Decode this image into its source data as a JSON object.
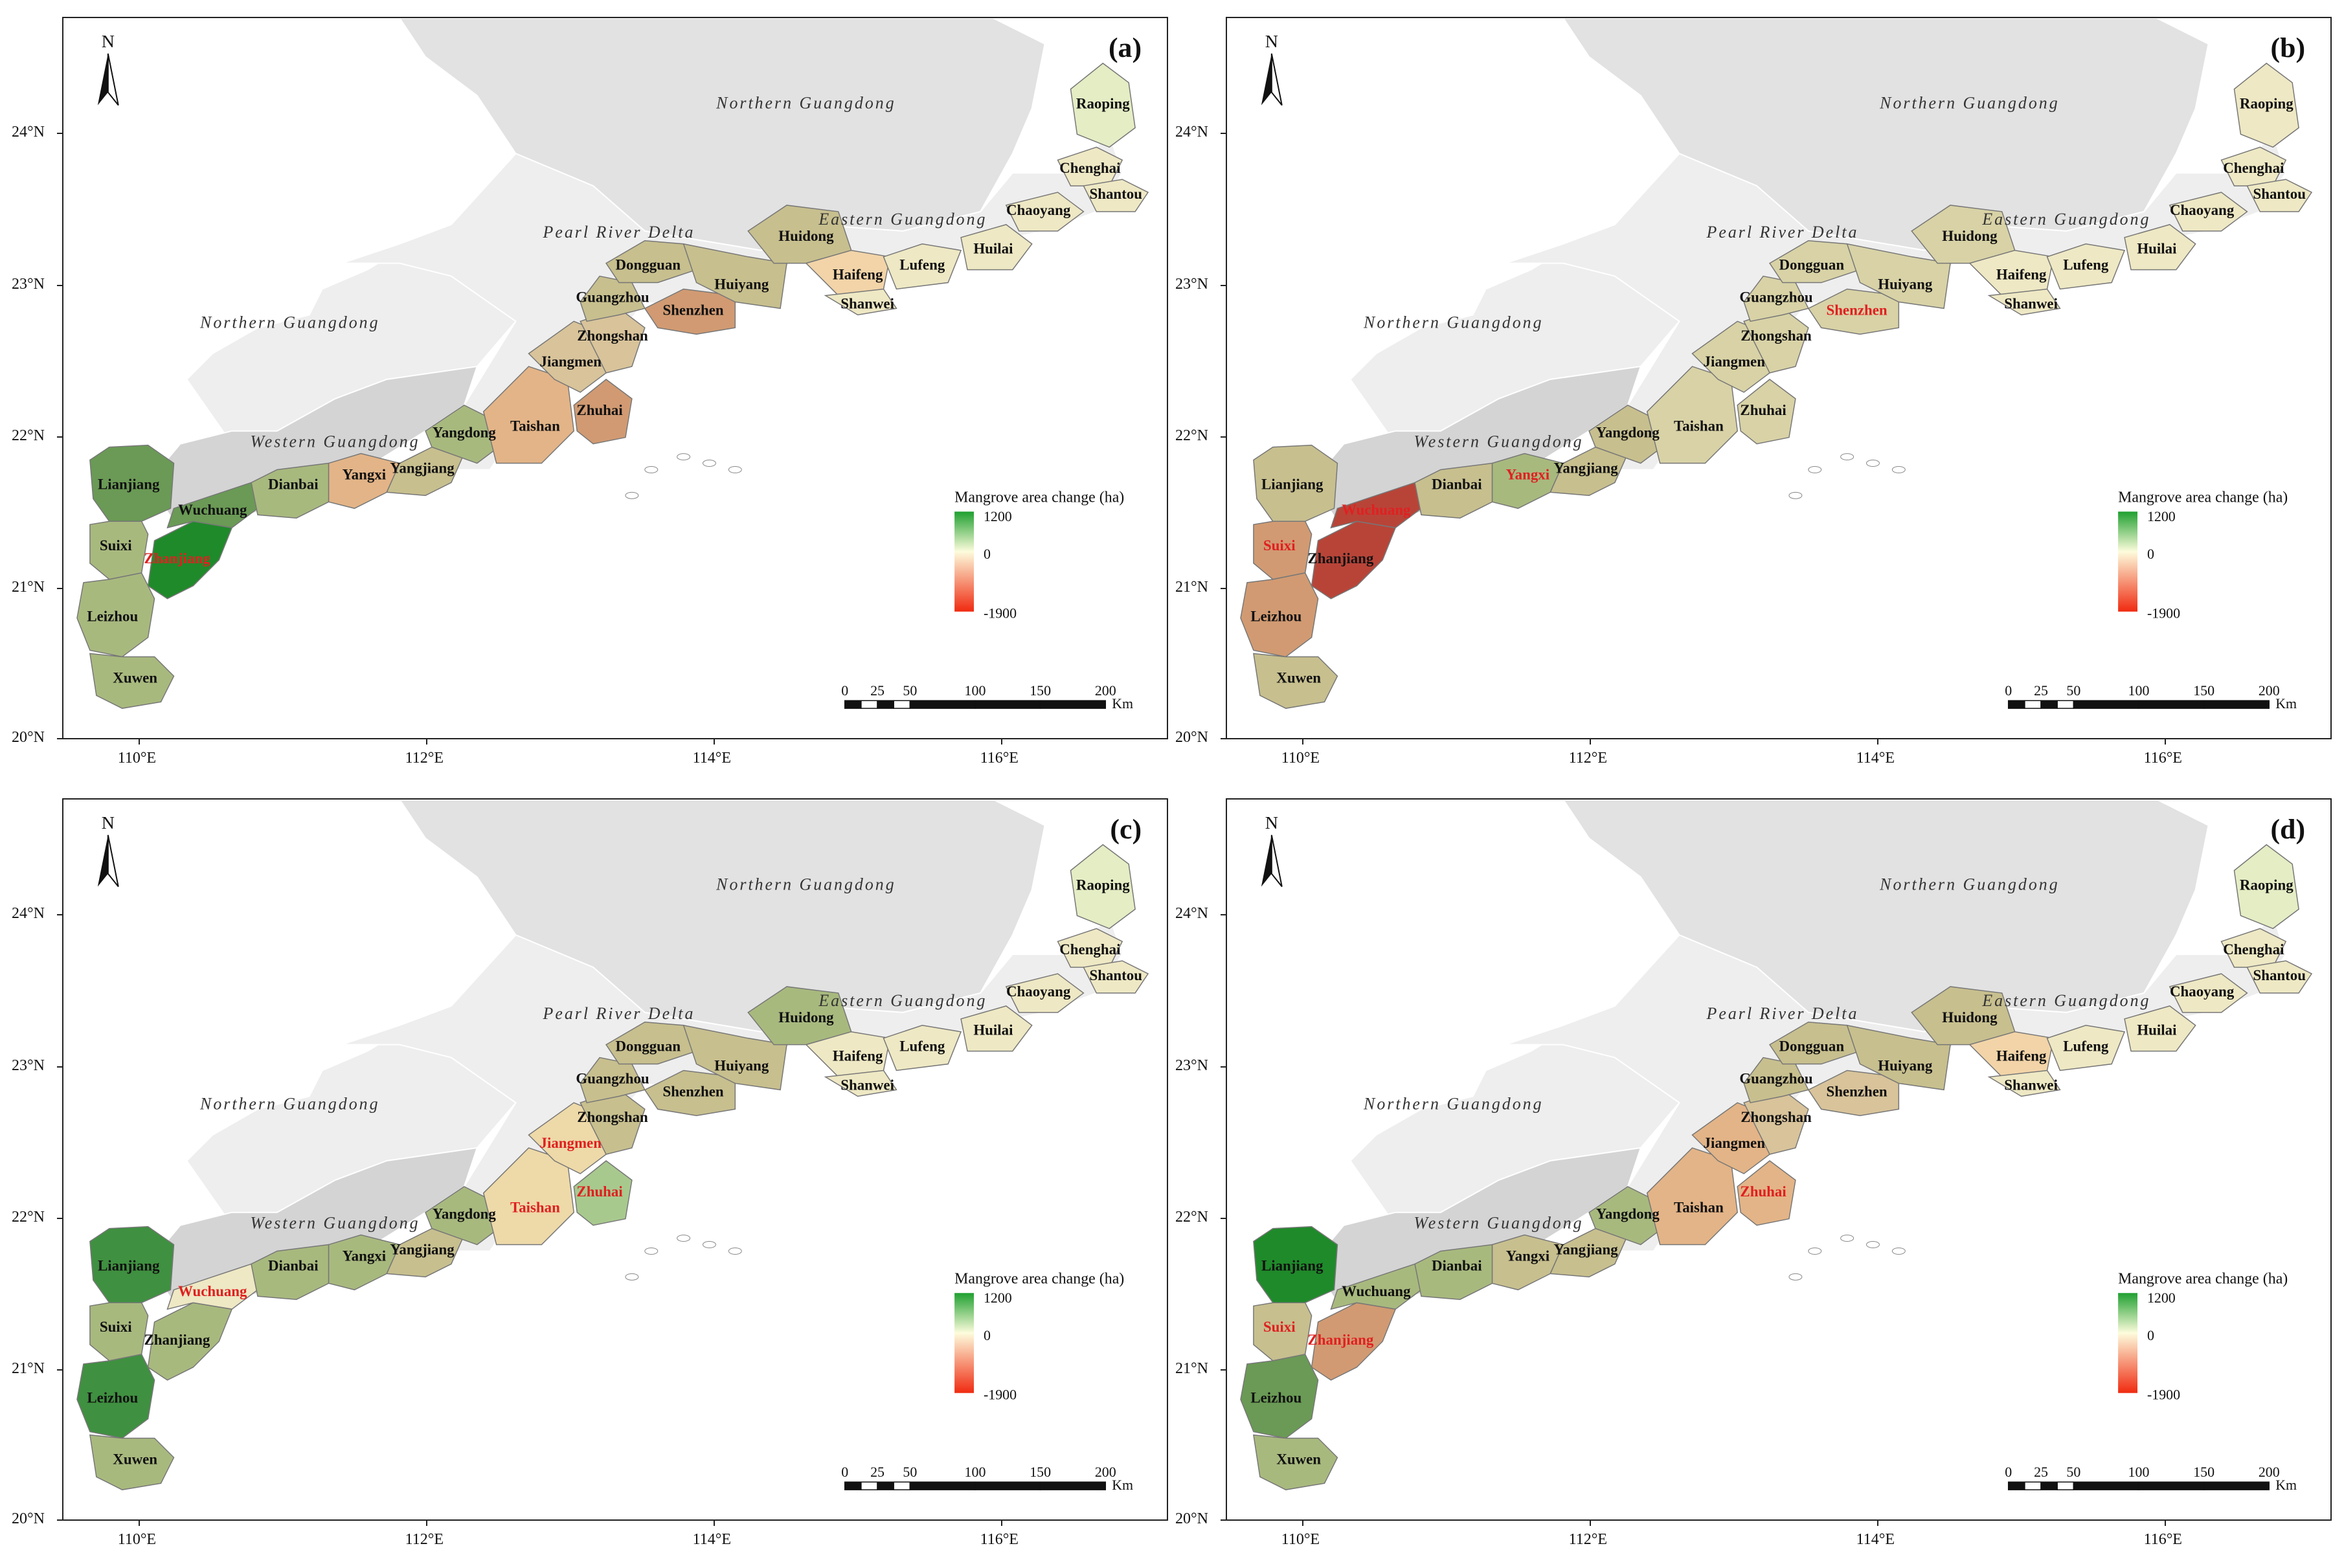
{
  "figure": {
    "legend_title": "Mangrove area change (ha)",
    "legend_max": "1200",
    "legend_mid": "0",
    "legend_min": "-1900",
    "scale_ticks": [
      "0",
      "25",
      "50",
      "100",
      "150",
      "200"
    ],
    "scale_unit": "Km",
    "north_label": "N",
    "lat_labels": [
      "24°N",
      "23°N",
      "22°N",
      "21°N",
      "20°N"
    ],
    "lon_labels": [
      "110°E",
      "112°E",
      "114°E",
      "116°E"
    ],
    "colors": {
      "gain_strong": "#1f8a2a",
      "gain_mid": "#6a9a55",
      "gain_light": "#a8b97e",
      "neutral": "#d8d2a6",
      "pale": "#eee8c4",
      "pale_green": "#e4edc4",
      "loss_light": "#e8c59a",
      "loss_mid": "#d19a72",
      "loss_strong": "#b84438",
      "region_dark": "#d4d4d4",
      "region_mid": "#e2e2e2",
      "region_light": "#eeeeee"
    }
  },
  "regions": {
    "northern_top": "Northern Guangdong",
    "northern_west": "Northern Guangdong",
    "prd": "Pearl River Delta",
    "eastern": "Eastern Guangdong",
    "western": "Western Guangdong"
  },
  "panels": [
    {
      "id": "a",
      "letter": "(a)",
      "fills": {
        "Lianjiang": "#6a9a55",
        "Suixi": "#a8b97e",
        "Zhanjiang": "#1f8a2a",
        "Wuchuang": "#6a9a55",
        "Leizhou": "#a8b97e",
        "Xuwen": "#a8b97e",
        "Dianbai": "#a8b97e",
        "Yangxi": "#e3b487",
        "Yangjiang": "#c7bf8e",
        "Yangdong": "#a8b97e",
        "Taishan": "#e3b487",
        "Jiangmen": "#d8c39a",
        "Zhuhai": "#d19a72",
        "Zhongshan": "#d8c39a",
        "Guangzhou": "#c7bf8e",
        "Dongguan": "#c7bf8e",
        "Shenzhen": "#d19a72",
        "Huiyang": "#c7bf8e",
        "Huidong": "#c7bf8e",
        "Haifeng": "#f2d4a8",
        "Shanwei": "#eee8c4",
        "Lufeng": "#eee8c4",
        "Huilai": "#eee8c4",
        "Chaoyang": "#eee8c4",
        "Chenghai": "#eee8c4",
        "Shantou": "#eee8c4",
        "Raoping": "#e4edc4"
      },
      "labels": [
        {
          "name": "Lianjiang",
          "red": false
        },
        {
          "name": "Suixi",
          "red": false
        },
        {
          "name": "Zhanjiang",
          "red": true
        },
        {
          "name": "Wuchuang",
          "red": false
        },
        {
          "name": "Leizhou",
          "red": false
        },
        {
          "name": "Xuwen",
          "red": false
        },
        {
          "name": "Dianbai",
          "red": false
        },
        {
          "name": "Yangxi",
          "red": false
        },
        {
          "name": "Yangjiang",
          "red": false
        },
        {
          "name": "Yangdong",
          "red": false
        },
        {
          "name": "Taishan",
          "red": false
        },
        {
          "name": "Jiangmen",
          "red": false
        },
        {
          "name": "Zhuhai",
          "red": false
        },
        {
          "name": "Zhongshan",
          "red": false
        },
        {
          "name": "Guangzhou",
          "red": false
        },
        {
          "name": "Dongguan",
          "red": false
        },
        {
          "name": "Shenzhen",
          "red": false
        },
        {
          "name": "Huiyang",
          "red": false
        },
        {
          "name": "Huidong",
          "red": false
        },
        {
          "name": "Haifeng",
          "red": false
        },
        {
          "name": "Shanwei",
          "red": false
        },
        {
          "name": "Lufeng",
          "red": false
        },
        {
          "name": "Huilai",
          "red": false
        },
        {
          "name": "Chaoyang",
          "red": false
        },
        {
          "name": "Chenghai",
          "red": false
        },
        {
          "name": "Shantou",
          "red": false
        },
        {
          "name": "Raoping",
          "red": false
        }
      ]
    },
    {
      "id": "b",
      "letter": "(b)",
      "fills": {
        "Lianjiang": "#c7bf8e",
        "Suixi": "#d19a72",
        "Zhanjiang": "#b84438",
        "Wuchuang": "#b84438",
        "Leizhou": "#d19a72",
        "Xuwen": "#c7bf8e",
        "Dianbai": "#c7bf8e",
        "Yangxi": "#a8b97e",
        "Yangjiang": "#c7bf8e",
        "Yangdong": "#c7bf8e",
        "Taishan": "#d8d2a6",
        "Jiangmen": "#d8d2a6",
        "Zhuhai": "#d8d2a6",
        "Zhongshan": "#d8d2a6",
        "Guangzhou": "#d8d2a6",
        "Dongguan": "#d8d2a6",
        "Shenzhen": "#d8d2a6",
        "Huiyang": "#d8d2a6",
        "Huidong": "#d8d2a6",
        "Haifeng": "#eee8c4",
        "Shanwei": "#eee8c4",
        "Lufeng": "#eee8c4",
        "Huilai": "#eee8c4",
        "Chaoyang": "#eee8c4",
        "Chenghai": "#eee8c4",
        "Shantou": "#eee8c4",
        "Raoping": "#eee8c4"
      },
      "labels": [
        {
          "name": "Lianjiang",
          "red": false
        },
        {
          "name": "Suixi",
          "red": true
        },
        {
          "name": "Zhanjiang",
          "red": false
        },
        {
          "name": "Wuchuang",
          "red": true
        },
        {
          "name": "Leizhou",
          "red": false
        },
        {
          "name": "Xuwen",
          "red": false
        },
        {
          "name": "Dianbai",
          "red": false
        },
        {
          "name": "Yangxi",
          "red": true
        },
        {
          "name": "Yangjiang",
          "red": false
        },
        {
          "name": "Yangdong",
          "red": false
        },
        {
          "name": "Taishan",
          "red": false
        },
        {
          "name": "Jiangmen",
          "red": false
        },
        {
          "name": "Zhuhai",
          "red": false
        },
        {
          "name": "Zhongshan",
          "red": false
        },
        {
          "name": "Guangzhou",
          "red": false
        },
        {
          "name": "Dongguan",
          "red": false
        },
        {
          "name": "Shenzhen",
          "red": true
        },
        {
          "name": "Huiyang",
          "red": false
        },
        {
          "name": "Huidong",
          "red": false
        },
        {
          "name": "Haifeng",
          "red": false
        },
        {
          "name": "Shanwei",
          "red": false
        },
        {
          "name": "Lufeng",
          "red": false
        },
        {
          "name": "Huilai",
          "red": false
        },
        {
          "name": "Chaoyang",
          "red": false
        },
        {
          "name": "Chenghai",
          "red": false
        },
        {
          "name": "Shantou",
          "red": false
        },
        {
          "name": "Raoping",
          "red": false
        }
      ]
    },
    {
      "id": "c",
      "letter": "(c)",
      "fills": {
        "Lianjiang": "#3f9040",
        "Suixi": "#a8b97e",
        "Zhanjiang": "#a8b97e",
        "Wuchuang": "#eee8c4",
        "Leizhou": "#3f9040",
        "Xuwen": "#a8b97e",
        "Dianbai": "#a8b97e",
        "Yangxi": "#a8b97e",
        "Yangjiang": "#c7bf8e",
        "Yangdong": "#a8b97e",
        "Taishan": "#eed9a8",
        "Jiangmen": "#eed9a8",
        "Zhuhai": "#a8c98e",
        "Zhongshan": "#c7bf8e",
        "Guangzhou": "#c7bf8e",
        "Dongguan": "#c7bf8e",
        "Shenzhen": "#c7bf8e",
        "Huiyang": "#c7bf8e",
        "Huidong": "#a8b97e",
        "Haifeng": "#eee8c4",
        "Shanwei": "#eee8c4",
        "Lufeng": "#eee8c4",
        "Huilai": "#eee8c4",
        "Chaoyang": "#eee8c4",
        "Chenghai": "#eee8c4",
        "Shantou": "#eee8c4",
        "Raoping": "#e4edc4"
      },
      "labels": [
        {
          "name": "Lianjiang",
          "red": false
        },
        {
          "name": "Suixi",
          "red": false
        },
        {
          "name": "Zhanjiang",
          "red": false
        },
        {
          "name": "Wuchuang",
          "red": true
        },
        {
          "name": "Leizhou",
          "red": false
        },
        {
          "name": "Xuwen",
          "red": false
        },
        {
          "name": "Dianbai",
          "red": false
        },
        {
          "name": "Yangxi",
          "red": false
        },
        {
          "name": "Yangjiang",
          "red": false
        },
        {
          "name": "Yangdong",
          "red": false
        },
        {
          "name": "Taishan",
          "red": true
        },
        {
          "name": "Jiangmen",
          "red": true
        },
        {
          "name": "Zhuhai",
          "red": true
        },
        {
          "name": "Zhongshan",
          "red": false
        },
        {
          "name": "Guangzhou",
          "red": false
        },
        {
          "name": "Dongguan",
          "red": false
        },
        {
          "name": "Shenzhen",
          "red": false
        },
        {
          "name": "Huiyang",
          "red": false
        },
        {
          "name": "Huidong",
          "red": false
        },
        {
          "name": "Haifeng",
          "red": false
        },
        {
          "name": "Shanwei",
          "red": false
        },
        {
          "name": "Lufeng",
          "red": false
        },
        {
          "name": "Huilai",
          "red": false
        },
        {
          "name": "Chaoyang",
          "red": false
        },
        {
          "name": "Chenghai",
          "red": false
        },
        {
          "name": "Shantou",
          "red": false
        },
        {
          "name": "Raoping",
          "red": false
        }
      ]
    },
    {
      "id": "d",
      "letter": "(d)",
      "fills": {
        "Lianjiang": "#1f8a2a",
        "Suixi": "#c7bf8e",
        "Zhanjiang": "#d19a72",
        "Wuchuang": "#a8b97e",
        "Leizhou": "#6a9a55",
        "Xuwen": "#a8b97e",
        "Dianbai": "#a8b97e",
        "Yangxi": "#c7bf8e",
        "Yangjiang": "#c7bf8e",
        "Yangdong": "#a8b97e",
        "Taishan": "#e3b487",
        "Jiangmen": "#e3b487",
        "Zhuhai": "#e3b487",
        "Zhongshan": "#d8c39a",
        "Guangzhou": "#c7bf8e",
        "Dongguan": "#c7bf8e",
        "Shenzhen": "#d8c39a",
        "Huiyang": "#c7bf8e",
        "Huidong": "#c7bf8e",
        "Haifeng": "#f2d4a8",
        "Shanwei": "#eee8c4",
        "Lufeng": "#eee8c4",
        "Huilai": "#eee8c4",
        "Chaoyang": "#eee8c4",
        "Chenghai": "#eee8c4",
        "Shantou": "#eee8c4",
        "Raoping": "#e4edc4"
      },
      "labels": [
        {
          "name": "Lianjiang",
          "red": false
        },
        {
          "name": "Suixi",
          "red": true
        },
        {
          "name": "Zhanjiang",
          "red": true
        },
        {
          "name": "Wuchuang",
          "red": false
        },
        {
          "name": "Leizhou",
          "red": false
        },
        {
          "name": "Xuwen",
          "red": false
        },
        {
          "name": "Dianbai",
          "red": false
        },
        {
          "name": "Yangxi",
          "red": false
        },
        {
          "name": "Yangjiang",
          "red": false
        },
        {
          "name": "Yangdong",
          "red": false
        },
        {
          "name": "Taishan",
          "red": false
        },
        {
          "name": "Jiangmen",
          "red": false
        },
        {
          "name": "Zhuhai",
          "red": true
        },
        {
          "name": "Zhongshan",
          "red": false
        },
        {
          "name": "Guangzhou",
          "red": false
        },
        {
          "name": "Dongguan",
          "red": false
        },
        {
          "name": "Shenzhen",
          "red": false
        },
        {
          "name": "Huiyang",
          "red": false
        },
        {
          "name": "Huidong",
          "red": false
        },
        {
          "name": "Haifeng",
          "red": false
        },
        {
          "name": "Shanwei",
          "red": false
        },
        {
          "name": "Lufeng",
          "red": false
        },
        {
          "name": "Huilai",
          "red": false
        },
        {
          "name": "Chaoyang",
          "red": false
        },
        {
          "name": "Chenghai",
          "red": false
        },
        {
          "name": "Shantou",
          "red": false
        },
        {
          "name": "Raoping",
          "red": false
        }
      ]
    }
  ]
}
